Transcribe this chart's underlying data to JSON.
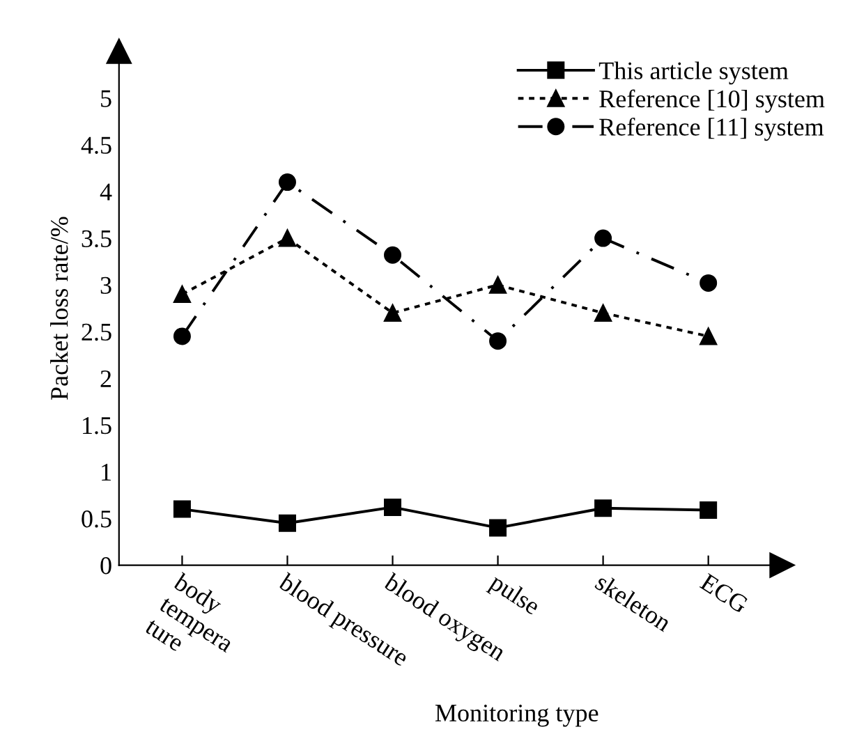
{
  "chart_data": {
    "type": "line",
    "xlabel": "Monitoring type",
    "ylabel": "Packet loss rate/%",
    "categories": [
      "body\ntempera\nture",
      "blood pressure",
      "blood oxygen",
      "pulse",
      "skeleton",
      "ECG"
    ],
    "series": [
      {
        "name": "This article system",
        "color": "#000000",
        "marker": "square",
        "line_style": "solid",
        "values": [
          0.6,
          0.45,
          0.62,
          0.4,
          0.61,
          0.59
        ]
      },
      {
        "name": "Reference [10] system",
        "color": "#000000",
        "marker": "triangle",
        "line_style": "dotted",
        "values": [
          2.9,
          3.5,
          2.7,
          3.0,
          2.7,
          2.45
        ]
      },
      {
        "name": "Reference [11] system",
        "color": "#000000",
        "marker": "circle",
        "line_style": "dashed",
        "values": [
          2.45,
          4.1,
          3.32,
          2.4,
          3.5,
          3.02
        ]
      }
    ],
    "ylim": [
      0,
      5.5
    ],
    "yticks": [
      0,
      0.5,
      1,
      1.5,
      2,
      2.5,
      3,
      3.5,
      4,
      4.5,
      5
    ],
    "grid": false,
    "legend": "top right"
  }
}
